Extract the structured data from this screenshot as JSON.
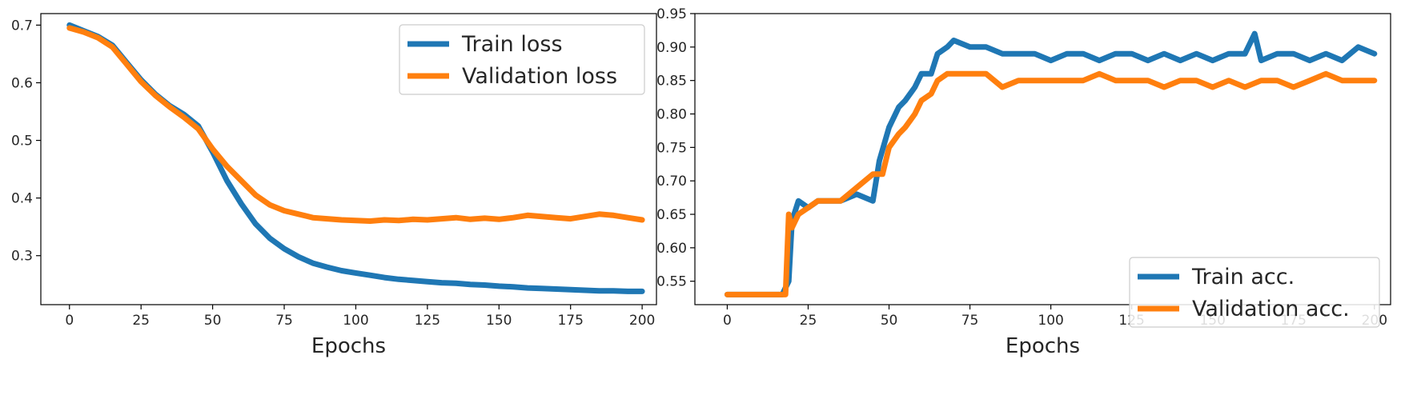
{
  "chart_data": [
    {
      "type": "line",
      "title": "",
      "xlabel": "Epochs",
      "ylabel": "",
      "xlim": [
        -10,
        205
      ],
      "ylim": [
        0.215,
        0.72
      ],
      "xticks": [
        0,
        25,
        50,
        75,
        100,
        125,
        150,
        175,
        200
      ],
      "yticks": [
        0.3,
        0.4,
        0.5,
        0.6,
        0.7
      ],
      "ytick_labels": [
        "0.3",
        "0.4",
        "0.5",
        "0.6",
        "0.7"
      ],
      "grid": false,
      "legend": "top-right",
      "series": [
        {
          "name": "Train loss",
          "color": "#1f77b4",
          "x": [
            0,
            5,
            10,
            15,
            20,
            25,
            30,
            35,
            40,
            45,
            50,
            55,
            60,
            65,
            70,
            75,
            80,
            85,
            90,
            95,
            100,
            105,
            110,
            115,
            120,
            125,
            130,
            135,
            140,
            145,
            150,
            155,
            160,
            165,
            170,
            175,
            180,
            185,
            190,
            195,
            200
          ],
          "y": [
            0.7,
            0.69,
            0.68,
            0.665,
            0.635,
            0.605,
            0.58,
            0.56,
            0.545,
            0.525,
            0.48,
            0.43,
            0.39,
            0.355,
            0.33,
            0.312,
            0.298,
            0.287,
            0.28,
            0.274,
            0.27,
            0.266,
            0.262,
            0.259,
            0.257,
            0.255,
            0.253,
            0.252,
            0.25,
            0.249,
            0.247,
            0.246,
            0.244,
            0.243,
            0.242,
            0.241,
            0.24,
            0.239,
            0.239,
            0.238,
            0.238
          ]
        },
        {
          "name": "Validation loss",
          "color": "#ff7f0e",
          "x": [
            0,
            5,
            10,
            15,
            20,
            25,
            30,
            35,
            40,
            45,
            50,
            55,
            60,
            65,
            70,
            75,
            80,
            85,
            90,
            95,
            100,
            105,
            110,
            115,
            120,
            125,
            130,
            135,
            140,
            145,
            150,
            155,
            160,
            165,
            170,
            175,
            180,
            185,
            190,
            195,
            200
          ],
          "y": [
            0.695,
            0.688,
            0.678,
            0.662,
            0.632,
            0.602,
            0.578,
            0.558,
            0.54,
            0.52,
            0.485,
            0.455,
            0.43,
            0.405,
            0.388,
            0.378,
            0.372,
            0.366,
            0.364,
            0.362,
            0.361,
            0.36,
            0.362,
            0.361,
            0.363,
            0.362,
            0.364,
            0.366,
            0.363,
            0.365,
            0.363,
            0.366,
            0.37,
            0.368,
            0.366,
            0.364,
            0.368,
            0.372,
            0.37,
            0.366,
            0.362
          ]
        }
      ]
    },
    {
      "type": "line",
      "title": "",
      "xlabel": "Epochs",
      "ylabel": "",
      "xlim": [
        -10,
        205
      ],
      "ylim": [
        0.515,
        0.95
      ],
      "xticks": [
        0,
        25,
        50,
        75,
        100,
        125,
        150,
        175,
        200
      ],
      "yticks": [
        0.55,
        0.6,
        0.65,
        0.7,
        0.75,
        0.8,
        0.85,
        0.9,
        0.95
      ],
      "ytick_labels": [
        "0.55",
        "0.60",
        "0.65",
        "0.70",
        "0.75",
        "0.80",
        "0.85",
        "0.90",
        "0.95"
      ],
      "grid": false,
      "legend": "bottom-right",
      "series": [
        {
          "name": "Train acc.",
          "color": "#1f77b4",
          "x": [
            0,
            5,
            10,
            15,
            17,
            19,
            20,
            22,
            25,
            28,
            30,
            35,
            40,
            45,
            47,
            50,
            53,
            55,
            58,
            60,
            63,
            65,
            68,
            70,
            75,
            80,
            85,
            90,
            95,
            100,
            105,
            110,
            115,
            120,
            125,
            130,
            135,
            140,
            145,
            150,
            155,
            160,
            163,
            165,
            170,
            175,
            180,
            185,
            190,
            195,
            200
          ],
          "y": [
            0.53,
            0.53,
            0.53,
            0.53,
            0.53,
            0.55,
            0.64,
            0.67,
            0.66,
            0.67,
            0.67,
            0.67,
            0.68,
            0.67,
            0.73,
            0.78,
            0.81,
            0.82,
            0.84,
            0.86,
            0.86,
            0.89,
            0.9,
            0.91,
            0.9,
            0.9,
            0.89,
            0.89,
            0.89,
            0.88,
            0.89,
            0.89,
            0.88,
            0.89,
            0.89,
            0.88,
            0.89,
            0.88,
            0.89,
            0.88,
            0.89,
            0.89,
            0.92,
            0.88,
            0.89,
            0.89,
            0.88,
            0.89,
            0.88,
            0.9,
            0.89
          ]
        },
        {
          "name": "Validation acc.",
          "color": "#ff7f0e",
          "x": [
            0,
            5,
            10,
            15,
            18,
            19,
            20,
            22,
            25,
            28,
            30,
            35,
            40,
            45,
            48,
            50,
            53,
            55,
            58,
            60,
            63,
            65,
            68,
            70,
            75,
            80,
            85,
            90,
            95,
            100,
            105,
            110,
            115,
            120,
            125,
            130,
            135,
            140,
            145,
            150,
            155,
            160,
            165,
            170,
            175,
            180,
            185,
            190,
            195,
            200
          ],
          "y": [
            0.53,
            0.53,
            0.53,
            0.53,
            0.53,
            0.65,
            0.63,
            0.65,
            0.66,
            0.67,
            0.67,
            0.67,
            0.69,
            0.71,
            0.71,
            0.75,
            0.77,
            0.78,
            0.8,
            0.82,
            0.83,
            0.85,
            0.86,
            0.86,
            0.86,
            0.86,
            0.84,
            0.85,
            0.85,
            0.85,
            0.85,
            0.85,
            0.86,
            0.85,
            0.85,
            0.85,
            0.84,
            0.85,
            0.85,
            0.84,
            0.85,
            0.84,
            0.85,
            0.85,
            0.84,
            0.85,
            0.86,
            0.85,
            0.85,
            0.85
          ]
        }
      ]
    }
  ]
}
